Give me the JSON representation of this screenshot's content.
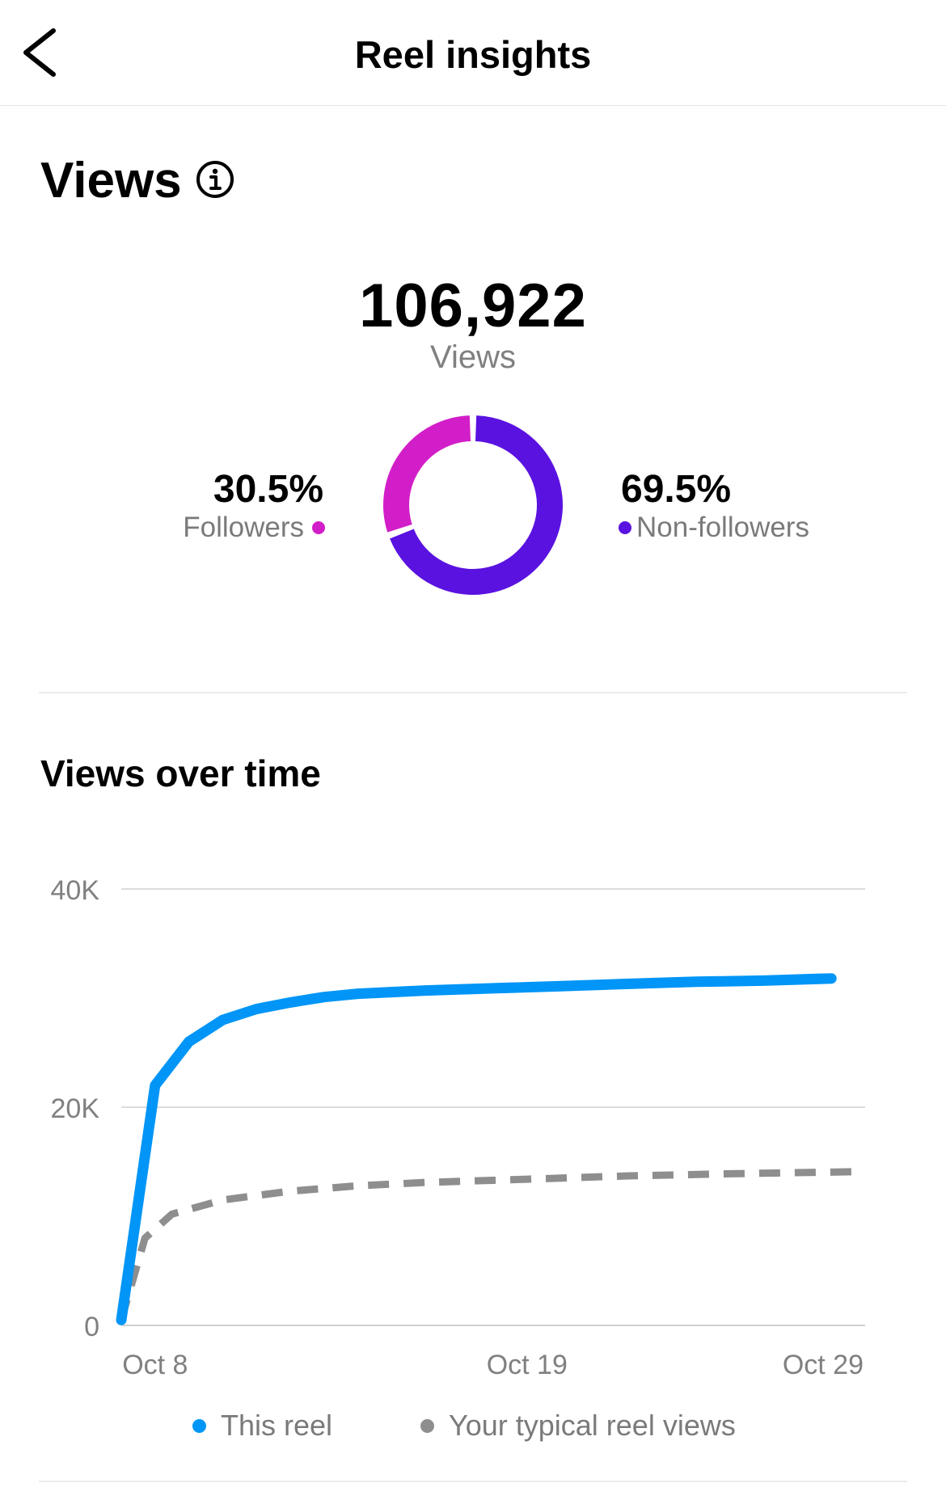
{
  "header": {
    "title": "Reel insights",
    "back_icon": "chevron-left-icon"
  },
  "views": {
    "title": "Views",
    "info_icon": "info-circle-icon",
    "total": "106,922",
    "total_label": "Views",
    "followers": {
      "percent": "30.5%",
      "label": "Followers",
      "fraction": 0.305,
      "color": "#d21ec8"
    },
    "non_followers": {
      "percent": "69.5%",
      "label": "Non-followers",
      "fraction": 0.695,
      "color": "#5a12e0"
    }
  },
  "chart_section": {
    "title": "Views over time"
  },
  "chart_data": {
    "type": "line",
    "title": "Views over time",
    "xlabel": "",
    "ylabel": "",
    "ylim": [
      0,
      40000
    ],
    "yticks": [
      "0",
      "20K",
      "40K"
    ],
    "xticks": [
      "Oct 8",
      "Oct 19",
      "Oct 29"
    ],
    "xlim": [
      7,
      29
    ],
    "series": [
      {
        "name": "This reel",
        "color": "#0095f6",
        "style": "solid",
        "points": [
          [
            7,
            500
          ],
          [
            8,
            22000
          ],
          [
            9,
            26000
          ],
          [
            10,
            28000
          ],
          [
            11,
            29000
          ],
          [
            12,
            29600
          ],
          [
            13,
            30100
          ],
          [
            14,
            30400
          ],
          [
            16,
            30700
          ],
          [
            18,
            30900
          ],
          [
            20,
            31100
          ],
          [
            22,
            31300
          ],
          [
            24,
            31500
          ],
          [
            26,
            31600
          ],
          [
            28,
            31800
          ]
        ]
      },
      {
        "name": "Your typical reel views",
        "color": "#8e8e8e",
        "style": "dashed",
        "points": [
          [
            7,
            500
          ],
          [
            7.7,
            8000
          ],
          [
            8.5,
            10200
          ],
          [
            10,
            11500
          ],
          [
            12,
            12300
          ],
          [
            14,
            12800
          ],
          [
            16,
            13100
          ],
          [
            19,
            13400
          ],
          [
            22,
            13700
          ],
          [
            25,
            13900
          ],
          [
            29,
            14100
          ]
        ]
      }
    ],
    "legend": "bottom",
    "grid": true
  }
}
